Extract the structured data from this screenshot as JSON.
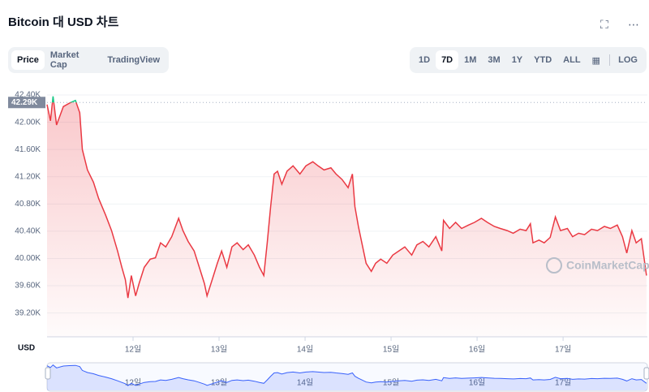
{
  "header": {
    "title": "Bitcoin 대 USD 차트"
  },
  "tabs": [
    "Price",
    "Market Cap",
    "TradingView"
  ],
  "ranges": [
    "1D",
    "7D",
    "1M",
    "3M",
    "1Y",
    "YTD",
    "ALL"
  ],
  "log": "LOG",
  "chart_data": {
    "type": "line",
    "y_axis_label": "USD",
    "watermark": "CoinMarketCap",
    "color": "#ea3943",
    "up_color": "#16c784",
    "reference": {
      "value": 42290,
      "label": "42.29K"
    },
    "xlim": [
      11,
      17.98
    ],
    "xticks": [
      {
        "value": 12,
        "label": "12일"
      },
      {
        "value": 13,
        "label": "13일"
      },
      {
        "value": 14,
        "label": "14일"
      },
      {
        "value": 15,
        "label": "15일"
      },
      {
        "value": 16,
        "label": "16일"
      },
      {
        "value": 17,
        "label": "17일"
      }
    ],
    "ylim": [
      38850,
      42460
    ],
    "yticks": [
      {
        "value": 39200,
        "label": "39.20K"
      },
      {
        "value": 39600,
        "label": "39.60K"
      },
      {
        "value": 40000,
        "label": "40.00K"
      },
      {
        "value": 40400,
        "label": "40.40K"
      },
      {
        "value": 40800,
        "label": "40.80K"
      },
      {
        "value": 41200,
        "label": "41.20K"
      },
      {
        "value": 41600,
        "label": "41.60K"
      },
      {
        "value": 42000,
        "label": "42.00K"
      },
      {
        "value": 42400,
        "label": "42.40K"
      }
    ],
    "grid": true,
    "x": [
      11.0,
      11.04,
      11.07,
      11.11,
      11.19,
      11.26,
      11.33,
      11.38,
      11.41,
      11.47,
      11.54,
      11.6,
      11.68,
      11.75,
      11.82,
      11.87,
      11.91,
      11.94,
      11.98,
      12.03,
      12.07,
      12.13,
      12.2,
      12.26,
      12.32,
      12.38,
      12.45,
      12.53,
      12.58,
      12.64,
      12.71,
      12.77,
      12.83,
      12.86,
      12.92,
      12.98,
      13.03,
      13.09,
      13.15,
      13.21,
      13.28,
      13.34,
      13.41,
      13.47,
      13.52,
      13.56,
      13.6,
      13.64,
      13.68,
      13.73,
      13.79,
      13.86,
      13.94,
      14.01,
      14.09,
      14.15,
      14.22,
      14.3,
      14.36,
      14.43,
      14.5,
      14.55,
      14.58,
      14.62,
      14.66,
      14.71,
      14.77,
      14.82,
      14.88,
      14.95,
      15.02,
      15.09,
      15.16,
      15.24,
      15.3,
      15.37,
      15.44,
      15.52,
      15.59,
      15.61,
      15.68,
      15.75,
      15.82,
      15.9,
      15.97,
      16.05,
      16.12,
      16.2,
      16.27,
      16.35,
      16.42,
      16.5,
      16.57,
      16.62,
      16.65,
      16.72,
      16.78,
      16.85,
      16.91,
      16.97,
      17.05,
      17.11,
      17.18,
      17.25,
      17.33,
      17.4,
      17.48,
      17.55,
      17.63,
      17.69,
      17.74,
      17.8,
      17.85,
      17.91,
      17.97
    ],
    "values": [
      42260,
      42020,
      42380,
      41960,
      42230,
      42280,
      42320,
      42140,
      41600,
      41300,
      41120,
      40880,
      40640,
      40410,
      40110,
      39870,
      39690,
      39420,
      39750,
      39450,
      39630,
      39870,
      39990,
      40010,
      40230,
      40170,
      40320,
      40590,
      40410,
      40250,
      40110,
      39870,
      39630,
      39450,
      39690,
      39930,
      40110,
      39870,
      40170,
      40230,
      40130,
      40200,
      40050,
      39870,
      39750,
      40230,
      40760,
      41240,
      41280,
      41090,
      41280,
      41360,
      41240,
      41360,
      41420,
      41360,
      41300,
      41330,
      41240,
      41160,
      41040,
      41240,
      40760,
      40470,
      40230,
      39930,
      39810,
      39930,
      39990,
      39930,
      40050,
      40110,
      40170,
      40050,
      40200,
      40250,
      40170,
      40320,
      40110,
      40560,
      40440,
      40530,
      40440,
      40490,
      40530,
      40590,
      40530,
      40470,
      40440,
      40410,
      40370,
      40430,
      40410,
      40510,
      40230,
      40270,
      40230,
      40310,
      40610,
      40410,
      40440,
      40320,
      40370,
      40350,
      40430,
      40410,
      40470,
      40440,
      40490,
      40320,
      40080,
      40410,
      40230,
      40290,
      39750
    ]
  }
}
